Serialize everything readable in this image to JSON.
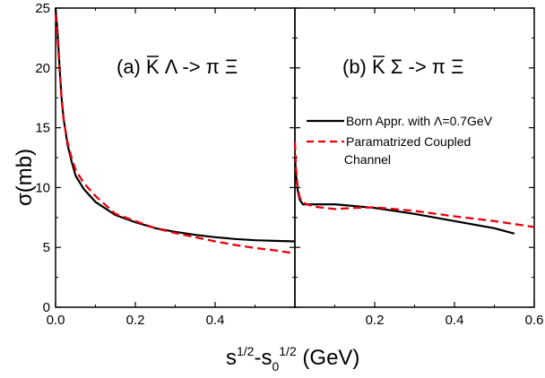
{
  "chart_data": {
    "type": "line",
    "x_axis_label": {
      "base": "s",
      "sup1": "1/2",
      "minus": "-s",
      "sub": "0",
      "sup2": "1/2",
      "unit": " (GeV)"
    },
    "y_axis_label": {
      "sigma": "σ",
      "unit": "(mb)"
    },
    "ylim": [
      0,
      25
    ],
    "y_ticks": [
      0,
      5,
      10,
      15,
      20,
      25
    ],
    "panels": [
      {
        "id": "a",
        "title": {
          "prefix": "(a) ",
          "kbar": "K",
          "rest": " Λ -> π Ξ"
        },
        "xlim": [
          0,
          0.6
        ],
        "x_ticks": [
          0.0,
          0.2,
          0.4
        ],
        "x_tick_labels": [
          "0.0",
          "0.2",
          "0.4"
        ],
        "series": [
          {
            "style": "solid-black",
            "x": [
              0.0,
              0.005,
              0.01,
              0.015,
              0.02,
              0.03,
              0.04,
              0.05,
              0.07,
              0.1,
              0.15,
              0.2,
              0.25,
              0.3,
              0.35,
              0.4,
              0.45,
              0.5,
              0.55,
              0.6
            ],
            "y": [
              25.0,
              23.0,
              20.0,
              17.5,
              15.8,
              13.6,
              12.2,
              11.0,
              9.9,
              8.8,
              7.7,
              7.1,
              6.6,
              6.3,
              6.05,
              5.85,
              5.7,
              5.6,
              5.55,
              5.5
            ]
          },
          {
            "style": "dashed-red",
            "x": [
              0.0,
              0.005,
              0.01,
              0.015,
              0.02,
              0.03,
              0.04,
              0.05,
              0.07,
              0.1,
              0.15,
              0.2,
              0.25,
              0.3,
              0.35,
              0.4,
              0.45,
              0.5,
              0.55,
              0.6
            ],
            "y": [
              24.5,
              22.5,
              19.8,
              17.4,
              15.7,
              13.8,
              12.5,
              11.5,
              10.4,
              9.3,
              7.8,
              7.2,
              6.6,
              6.2,
              5.85,
              5.5,
              5.2,
              4.95,
              4.75,
              4.5
            ]
          }
        ]
      },
      {
        "id": "b",
        "title": {
          "prefix": "(b) ",
          "kbar": "K",
          "rest": " Σ -> π Ξ"
        },
        "xlim": [
          0,
          0.6
        ],
        "x_ticks": [
          0.0,
          0.2,
          0.4,
          0.6
        ],
        "x_tick_labels": [
          "",
          "0.2",
          "0.4",
          "0.6"
        ],
        "series": [
          {
            "style": "solid-black",
            "x": [
              0.0,
              0.003,
              0.007,
              0.012,
              0.02,
              0.05,
              0.1,
              0.2,
              0.3,
              0.4,
              0.5,
              0.55
            ],
            "y": [
              12.5,
              11.0,
              9.8,
              9.0,
              8.6,
              8.6,
              8.6,
              8.3,
              7.8,
              7.2,
              6.6,
              6.15
            ]
          },
          {
            "style": "dashed-red",
            "x": [
              0.0,
              0.003,
              0.007,
              0.012,
              0.02,
              0.03,
              0.05,
              0.1,
              0.15,
              0.2,
              0.3,
              0.4,
              0.5,
              0.6
            ],
            "y": [
              13.8,
              11.5,
              10.0,
              9.2,
              8.75,
              8.6,
              8.4,
              8.2,
              8.3,
              8.35,
              8.05,
              7.6,
              7.2,
              6.7
            ]
          }
        ]
      }
    ],
    "legend": [
      {
        "style": "solid-black",
        "label": "Born Appr. with Λ=0.7GeV"
      },
      {
        "style": "dashed-red",
        "label_lines": [
          "Paramatrized Coupled",
          " Channel"
        ]
      }
    ],
    "legend_placement": "right panel, upper-middle",
    "grid": false
  }
}
